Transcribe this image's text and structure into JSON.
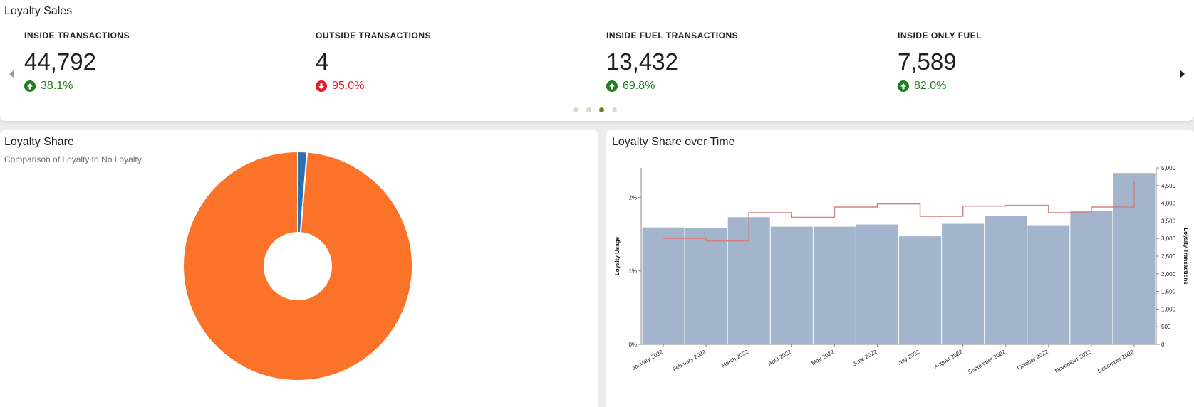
{
  "top": {
    "title": "Loyalty Sales",
    "kpis": [
      {
        "label": "INSIDE TRANSACTIONS",
        "value": "44,792",
        "delta": "38.1%",
        "direction": "up"
      },
      {
        "label": "OUTSIDE TRANSACTIONS",
        "value": "4",
        "delta": "95.0%",
        "direction": "down"
      },
      {
        "label": "INSIDE FUEL TRANSACTIONS",
        "value": "13,432",
        "delta": "69.8%",
        "direction": "up"
      },
      {
        "label": "INSIDE ONLY FUEL",
        "value": "7,589",
        "delta": "82.0%",
        "direction": "up"
      }
    ],
    "carousel": {
      "page_count": 4,
      "active_page": 3
    },
    "colors": {
      "up": "#1e7d1e",
      "down": "#e8192c",
      "dot": "#d7dcc8",
      "dot_active": "#6b7f2a"
    }
  },
  "left": {
    "title": "Loyalty Share",
    "subtitle": "Comparison of Loyalty to No Loyalty"
  },
  "right": {
    "title": "Loyalty Share over Time"
  },
  "chart_data": [
    {
      "type": "pie",
      "variant": "donut",
      "legend": "none",
      "slices": [
        {
          "value": 0.987,
          "color": "#fa7328"
        },
        {
          "value": 0.013,
          "color": "#2a70b4"
        }
      ]
    },
    {
      "type": "bar",
      "combo": "bar + step line",
      "categories": [
        "January 2022",
        "February 2022",
        "March 2022",
        "April 2022",
        "May 2022",
        "June 2022",
        "July 2022",
        "August 2022",
        "September 2022",
        "October 2022",
        "November 2022",
        "December 2022"
      ],
      "series": [
        {
          "kind": "bar",
          "axis": "left",
          "color": "#a3b5cd",
          "values": [
            1.59,
            1.58,
            1.73,
            1.6,
            1.6,
            1.63,
            1.47,
            1.64,
            1.75,
            1.62,
            1.82,
            2.33
          ]
        },
        {
          "kind": "step-line",
          "axis": "right",
          "color": "#d08080",
          "values": [
            3000,
            2930,
            3730,
            3600,
            3890,
            3980,
            3630,
            3920,
            3940,
            3730,
            3890,
            4630
          ]
        }
      ],
      "ylabel": "Loyalty Usage",
      "ylabel_right": "Loyalty Transactions",
      "ylim": [
        0,
        2.4
      ],
      "yticks": [
        "0%",
        "1%",
        "2%"
      ],
      "ylim_right": [
        0,
        5000
      ],
      "yticks_right": [
        "0",
        "500",
        "1,000",
        "1,500",
        "2,000",
        "2,500",
        "3,000",
        "3,500",
        "4,000",
        "4,500",
        "5,000"
      ],
      "grid": false,
      "legend": "none"
    }
  ]
}
